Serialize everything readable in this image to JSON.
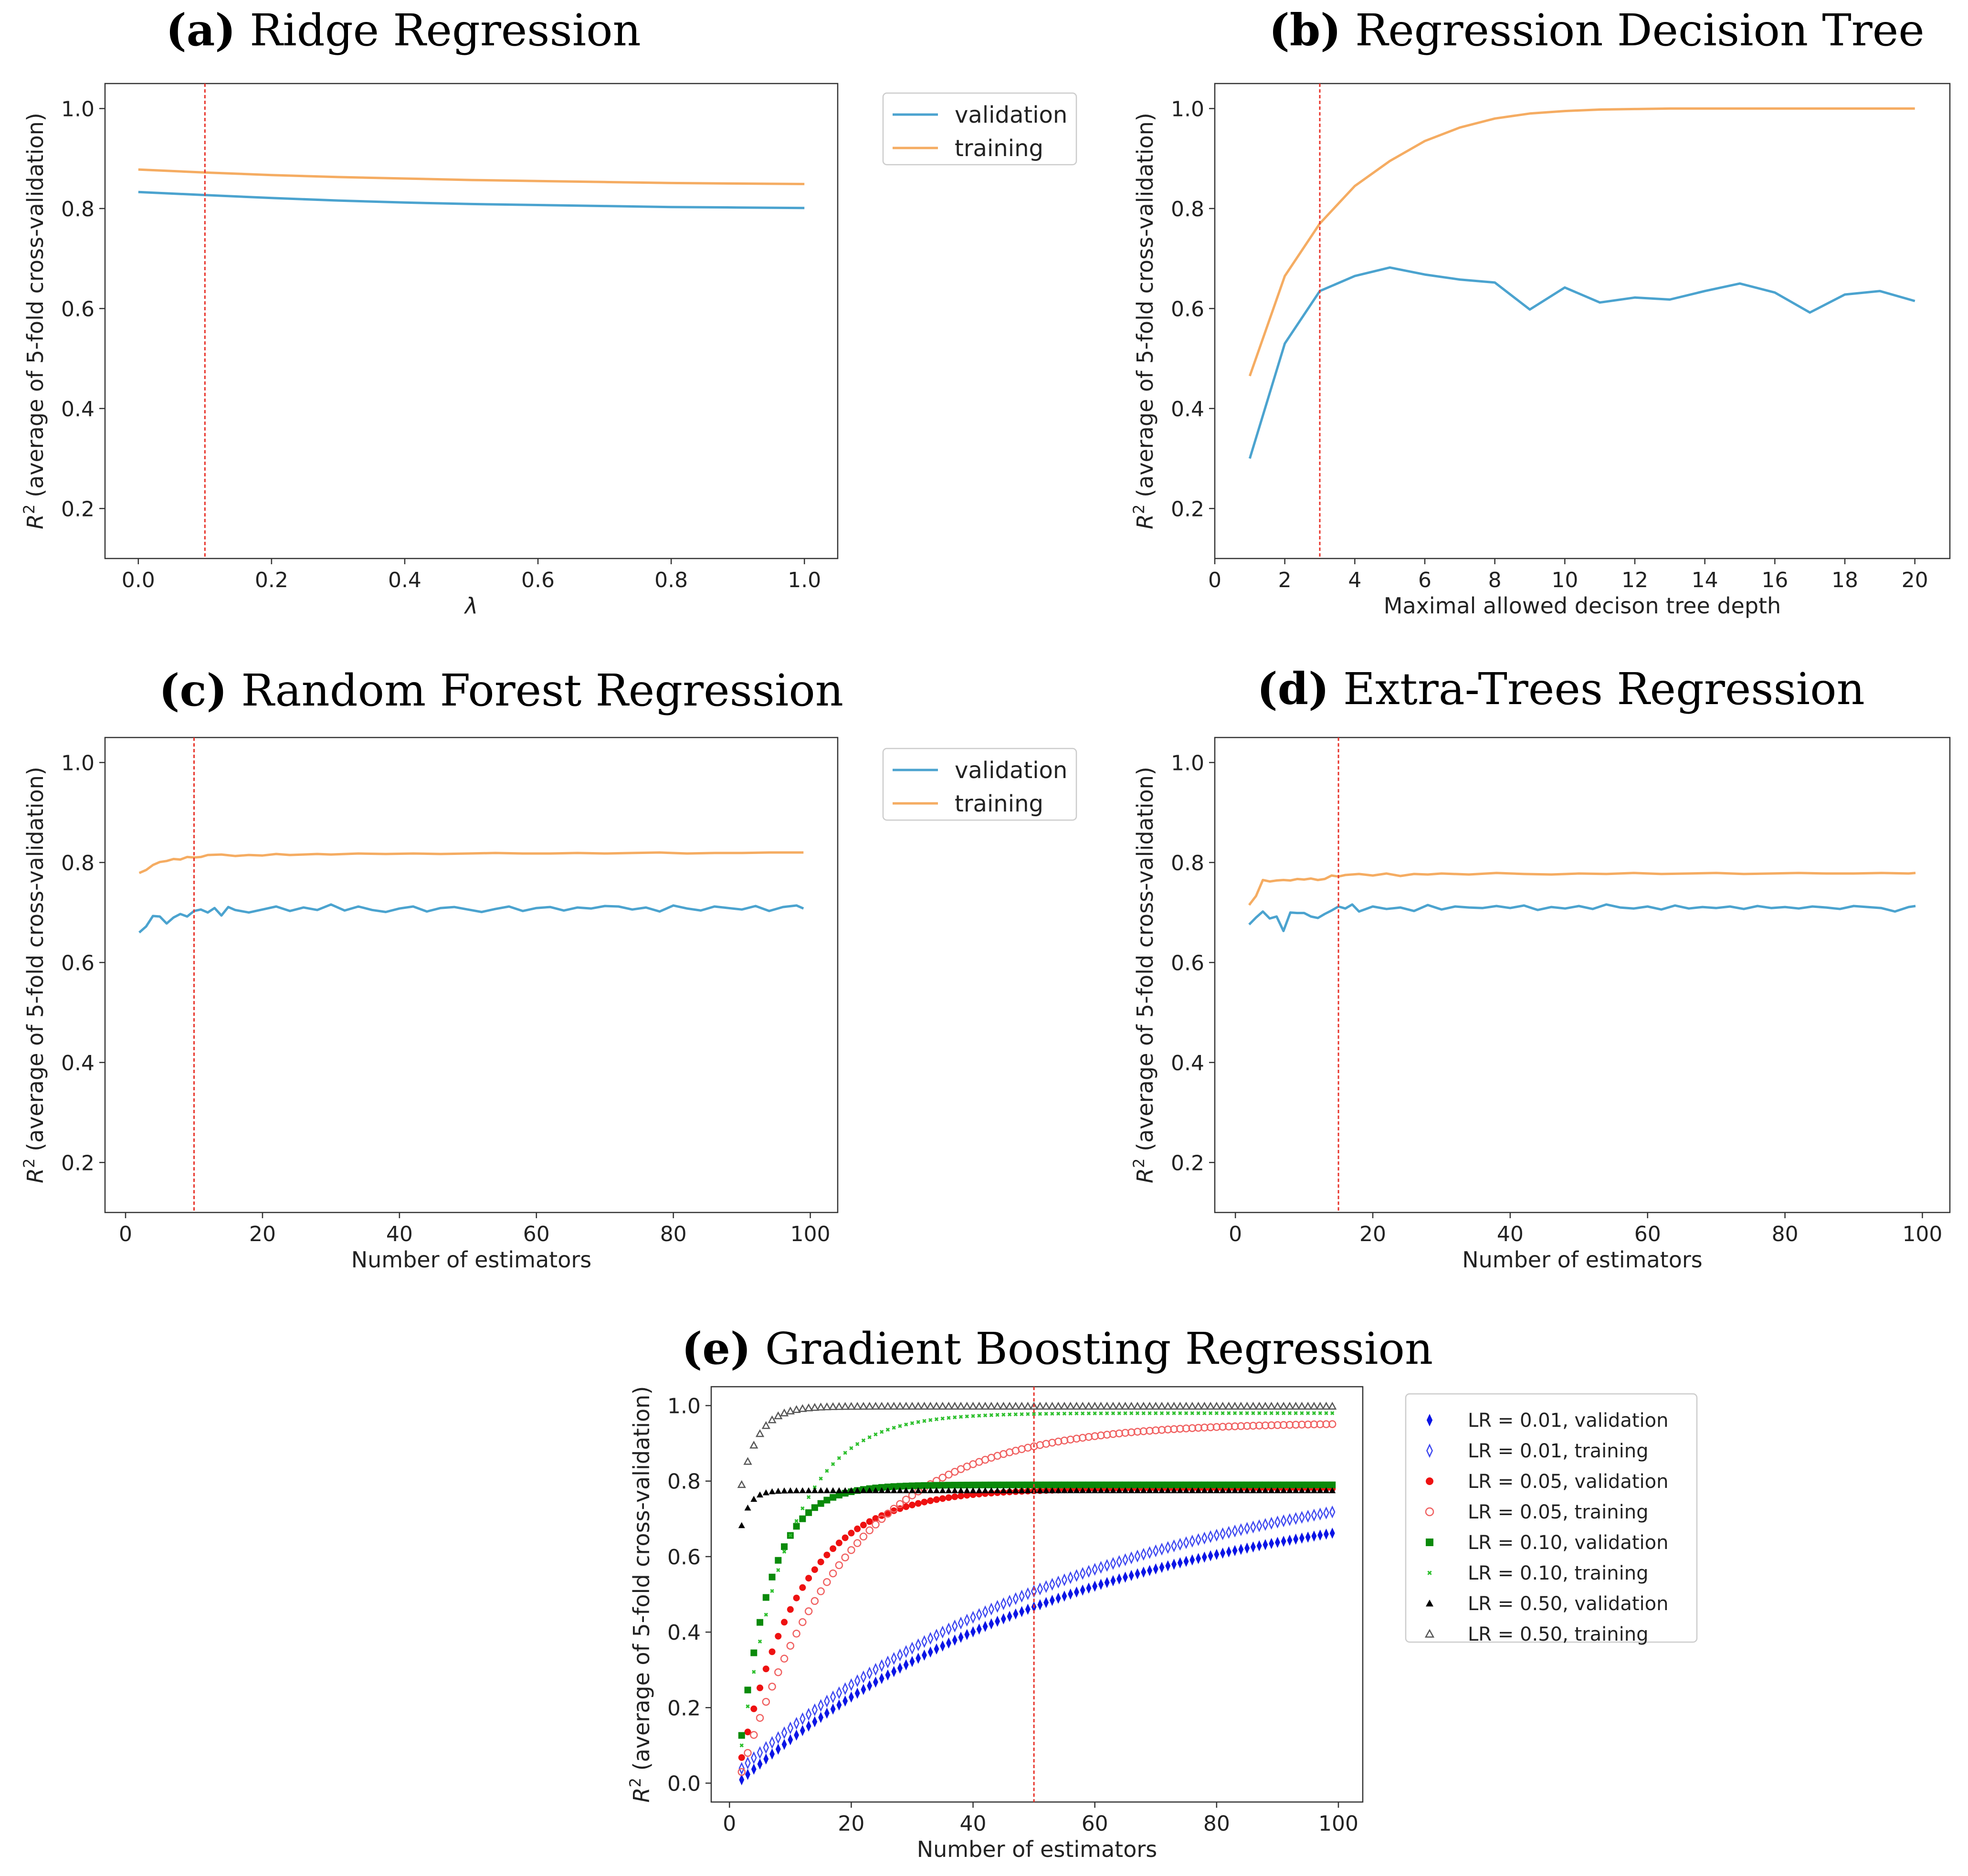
{
  "colors": {
    "validation": "#4ba3cf",
    "training": "#f5ac62",
    "optimal": "#e8332a"
  },
  "chart_data": [
    {
      "id": "a",
      "type": "line",
      "tag": "(a)",
      "title": "Ridge Regression",
      "xlabel": "λ",
      "ylabel": {
        "r": "R",
        "sup": "2",
        "rest": " (average of 5-fold cross-validation)"
      },
      "xlim": [
        -0.05,
        1.05
      ],
      "ylim": [
        0.1,
        1.05
      ],
      "xticks": [
        "0.0",
        "0.2",
        "0.4",
        "0.6",
        "0.8",
        "1.0"
      ],
      "xtick_values": [
        0,
        0.2,
        0.4,
        0.6,
        0.8,
        1.0
      ],
      "yticks": [
        "0.2",
        "0.4",
        "0.6",
        "0.8",
        "1.0"
      ],
      "ytick_values": [
        0.2,
        0.4,
        0.6,
        0.8,
        1.0
      ],
      "optimal_x": 0.1,
      "legend": {
        "position": "outside-right",
        "entries": [
          "validation",
          "training"
        ]
      },
      "series": [
        {
          "name": "validation",
          "x": [
            0,
            0.1,
            0.2,
            0.3,
            0.4,
            0.5,
            0.6,
            0.7,
            0.8,
            0.9,
            1.0
          ],
          "values": [
            0.833,
            0.827,
            0.821,
            0.816,
            0.812,
            0.809,
            0.807,
            0.805,
            0.803,
            0.802,
            0.801
          ]
        },
        {
          "name": "training",
          "x": [
            0,
            0.1,
            0.2,
            0.3,
            0.4,
            0.5,
            0.6,
            0.7,
            0.8,
            0.9,
            1.0
          ],
          "values": [
            0.878,
            0.872,
            0.867,
            0.863,
            0.86,
            0.857,
            0.855,
            0.853,
            0.851,
            0.85,
            0.849
          ]
        }
      ]
    },
    {
      "id": "b",
      "type": "line",
      "tag": "(b)",
      "title": "Regression Decision Tree",
      "xlabel": "Maximal allowed decison tree depth",
      "ylabel": {
        "r": "R",
        "sup": "2",
        "rest": " (average of 5-fold cross-validation)"
      },
      "xlim": [
        0,
        21
      ],
      "ylim": [
        0.1,
        1.05
      ],
      "xticks": [
        "0",
        "2",
        "4",
        "6",
        "8",
        "10",
        "12",
        "14",
        "16",
        "18",
        "20"
      ],
      "xtick_values": [
        0,
        2,
        4,
        6,
        8,
        10,
        12,
        14,
        16,
        18,
        20
      ],
      "yticks": [
        "0.2",
        "0.4",
        "0.6",
        "0.8",
        "1.0"
      ],
      "ytick_values": [
        0.2,
        0.4,
        0.6,
        0.8,
        1.0
      ],
      "optimal_x": 3,
      "series": [
        {
          "name": "validation",
          "x": [
            1,
            2,
            3,
            4,
            5,
            6,
            7,
            8,
            9,
            10,
            11,
            12,
            13,
            14,
            15,
            16,
            17,
            18,
            19,
            20
          ],
          "values": [
            0.3,
            0.53,
            0.635,
            0.665,
            0.682,
            0.668,
            0.658,
            0.652,
            0.598,
            0.642,
            0.612,
            0.622,
            0.618,
            0.635,
            0.65,
            0.632,
            0.592,
            0.628,
            0.635,
            0.615
          ]
        },
        {
          "name": "training",
          "x": [
            1,
            2,
            3,
            4,
            5,
            6,
            7,
            8,
            9,
            10,
            11,
            12,
            13,
            14,
            15,
            16,
            17,
            18,
            19,
            20
          ],
          "values": [
            0.465,
            0.665,
            0.77,
            0.845,
            0.895,
            0.935,
            0.962,
            0.98,
            0.99,
            0.995,
            0.998,
            0.999,
            1.0,
            1.0,
            1.0,
            1.0,
            1.0,
            1.0,
            1.0,
            1.0
          ]
        }
      ]
    },
    {
      "id": "c",
      "type": "line",
      "tag": "(c)",
      "title": "Random Forest Regression",
      "xlabel": "Number of estimators",
      "ylabel": {
        "r": "R",
        "sup": "2",
        "rest": " (average of 5-fold cross-validation)"
      },
      "xlim": [
        -3,
        104
      ],
      "ylim": [
        0.1,
        1.05
      ],
      "xticks": [
        "0",
        "20",
        "40",
        "60",
        "80",
        "100"
      ],
      "xtick_values": [
        0,
        20,
        40,
        60,
        80,
        100
      ],
      "yticks": [
        "0.2",
        "0.4",
        "0.6",
        "0.8",
        "1.0"
      ],
      "ytick_values": [
        0.2,
        0.4,
        0.6,
        0.8,
        1.0
      ],
      "optimal_x": 10,
      "legend": {
        "position": "outside-right",
        "entries": [
          "validation",
          "training"
        ]
      },
      "series": [
        {
          "name": "validation",
          "x": [
            2,
            3,
            4,
            5,
            6,
            7,
            8,
            9,
            10,
            11,
            12,
            13,
            14,
            15,
            16,
            18,
            20,
            22,
            24,
            26,
            28,
            30,
            32,
            34,
            36,
            38,
            40,
            42,
            44,
            46,
            48,
            50,
            52,
            54,
            56,
            58,
            60,
            62,
            64,
            66,
            68,
            70,
            72,
            74,
            76,
            78,
            80,
            82,
            84,
            86,
            88,
            90,
            92,
            94,
            96,
            98,
            99
          ],
          "values": [
            0.66,
            0.672,
            0.693,
            0.692,
            0.678,
            0.69,
            0.697,
            0.692,
            0.703,
            0.706,
            0.7,
            0.709,
            0.694,
            0.711,
            0.705,
            0.7,
            0.706,
            0.712,
            0.703,
            0.71,
            0.705,
            0.716,
            0.704,
            0.712,
            0.705,
            0.701,
            0.708,
            0.712,
            0.702,
            0.709,
            0.711,
            0.706,
            0.701,
            0.707,
            0.712,
            0.703,
            0.709,
            0.711,
            0.704,
            0.71,
            0.708,
            0.713,
            0.712,
            0.706,
            0.71,
            0.702,
            0.714,
            0.708,
            0.704,
            0.712,
            0.709,
            0.706,
            0.713,
            0.703,
            0.711,
            0.714,
            0.708
          ]
        },
        {
          "name": "training",
          "x": [
            2,
            3,
            4,
            5,
            6,
            7,
            8,
            9,
            10,
            11,
            12,
            14,
            16,
            18,
            20,
            22,
            24,
            26,
            28,
            30,
            34,
            38,
            42,
            46,
            50,
            54,
            58,
            62,
            66,
            70,
            74,
            78,
            82,
            86,
            90,
            94,
            98,
            99
          ],
          "values": [
            0.779,
            0.785,
            0.795,
            0.801,
            0.803,
            0.807,
            0.806,
            0.811,
            0.81,
            0.811,
            0.815,
            0.816,
            0.813,
            0.815,
            0.814,
            0.817,
            0.815,
            0.816,
            0.817,
            0.816,
            0.818,
            0.817,
            0.818,
            0.817,
            0.818,
            0.819,
            0.818,
            0.818,
            0.819,
            0.818,
            0.819,
            0.82,
            0.818,
            0.819,
            0.819,
            0.82,
            0.82,
            0.82
          ]
        }
      ]
    },
    {
      "id": "d",
      "type": "line",
      "tag": "(d)",
      "title": "Extra-Trees Regression",
      "xlabel": "Number of estimators",
      "ylabel": {
        "r": "R",
        "sup": "2",
        "rest": " (average of 5-fold cross-validation)"
      },
      "xlim": [
        -3,
        104
      ],
      "ylim": [
        0.1,
        1.05
      ],
      "xticks": [
        "0",
        "20",
        "40",
        "60",
        "80",
        "100"
      ],
      "xtick_values": [
        0,
        20,
        40,
        60,
        80,
        100
      ],
      "yticks": [
        "0.2",
        "0.4",
        "0.6",
        "0.8",
        "1.0"
      ],
      "ytick_values": [
        0.2,
        0.4,
        0.6,
        0.8,
        1.0
      ],
      "optimal_x": 15,
      "series": [
        {
          "name": "validation",
          "x": [
            2,
            3,
            4,
            5,
            6,
            7,
            8,
            9,
            10,
            11,
            12,
            13,
            14,
            15,
            16,
            17,
            18,
            20,
            22,
            24,
            26,
            28,
            30,
            32,
            34,
            36,
            38,
            40,
            42,
            44,
            46,
            48,
            50,
            52,
            54,
            56,
            58,
            60,
            62,
            64,
            66,
            68,
            70,
            72,
            74,
            76,
            78,
            80,
            82,
            84,
            86,
            88,
            90,
            92,
            94,
            96,
            98,
            99
          ],
          "values": [
            0.676,
            0.69,
            0.702,
            0.688,
            0.692,
            0.663,
            0.7,
            0.699,
            0.699,
            0.692,
            0.689,
            0.697,
            0.704,
            0.712,
            0.708,
            0.716,
            0.702,
            0.712,
            0.707,
            0.71,
            0.703,
            0.715,
            0.706,
            0.712,
            0.71,
            0.709,
            0.713,
            0.709,
            0.714,
            0.705,
            0.711,
            0.708,
            0.713,
            0.707,
            0.716,
            0.71,
            0.708,
            0.712,
            0.706,
            0.714,
            0.708,
            0.711,
            0.709,
            0.712,
            0.707,
            0.713,
            0.709,
            0.711,
            0.708,
            0.712,
            0.71,
            0.707,
            0.713,
            0.711,
            0.709,
            0.702,
            0.711,
            0.713
          ]
        },
        {
          "name": "training",
          "x": [
            2,
            3,
            4,
            5,
            6,
            7,
            8,
            9,
            10,
            11,
            12,
            13,
            14,
            15,
            16,
            18,
            20,
            22,
            24,
            26,
            28,
            30,
            34,
            38,
            42,
            46,
            50,
            54,
            58,
            62,
            66,
            70,
            74,
            78,
            82,
            86,
            90,
            94,
            98,
            99
          ],
          "values": [
            0.715,
            0.733,
            0.765,
            0.762,
            0.764,
            0.765,
            0.764,
            0.767,
            0.766,
            0.768,
            0.765,
            0.767,
            0.774,
            0.772,
            0.775,
            0.777,
            0.774,
            0.778,
            0.773,
            0.777,
            0.776,
            0.778,
            0.776,
            0.779,
            0.777,
            0.776,
            0.778,
            0.777,
            0.779,
            0.777,
            0.778,
            0.779,
            0.777,
            0.778,
            0.779,
            0.778,
            0.778,
            0.779,
            0.778,
            0.779
          ]
        }
      ]
    },
    {
      "id": "e",
      "type": "scatter",
      "tag": "(e)",
      "title": "Gradient Boosting Regression",
      "xlabel": "Number of estimators",
      "ylabel": {
        "r": "R",
        "sup": "2",
        "rest": " (average of 5-fold cross-validation)"
      },
      "xlim": [
        -3,
        104
      ],
      "ylim": [
        -0.05,
        1.05
      ],
      "xticks": [
        "0",
        "20",
        "40",
        "60",
        "80",
        "100"
      ],
      "xtick_values": [
        0,
        20,
        40,
        60,
        80,
        100
      ],
      "yticks": [
        "0.0",
        "0.2",
        "0.4",
        "0.6",
        "0.8",
        "1.0"
      ],
      "ytick_values": [
        0,
        0.2,
        0.4,
        0.6,
        0.8,
        1.0
      ],
      "optimal_x": 50,
      "x_range": [
        2,
        99
      ],
      "legend": {
        "position": "outside-right",
        "entries": [
          "LR = 0.01, validation",
          "LR = 0.01, training",
          "LR = 0.05, validation",
          "LR = 0.05, training",
          "LR = 0.10, validation",
          "LR = 0.10, training",
          "LR = 0.50, validation",
          "LR = 0.50, training"
        ]
      },
      "series": [
        {
          "name": "LR = 0.01, validation",
          "marker": "diamond-filled",
          "color": "#0a14e6",
          "curve": {
            "start": -0.02,
            "end": 0.8,
            "rate": 0.018
          }
        },
        {
          "name": "LR = 0.01, training",
          "marker": "diamond-open",
          "color": "#3c46f0",
          "curve": {
            "start": 0.01,
            "end": 0.88,
            "rate": 0.017
          }
        },
        {
          "name": "LR = 0.05, validation",
          "marker": "circle-filled",
          "color": "#ee1111",
          "curve": {
            "start": -0.09,
            "end": 0.78,
            "rate": 0.1
          }
        },
        {
          "name": "LR = 0.05, training",
          "marker": "circle-open",
          "color": "#f06060",
          "curve": {
            "start": -0.08,
            "end": 0.955,
            "rate": 0.056
          }
        },
        {
          "name": "LR = 0.10, validation",
          "marker": "square-filled",
          "color": "#0a8a0a",
          "curve": {
            "start": -0.2,
            "end": 0.79,
            "rate": 0.2
          }
        },
        {
          "name": "LR = 0.10, training",
          "marker": "x",
          "color": "#2cbf2c",
          "curve": {
            "start": -0.15,
            "end": 0.98,
            "rate": 0.125
          }
        },
        {
          "name": "LR = 0.50, validation",
          "marker": "triangle-filled",
          "color": "#000000",
          "curve": {
            "start": 0.4,
            "end": 0.775,
            "rate": 0.7
          }
        },
        {
          "name": "LR = 0.50, training",
          "marker": "triangle-open",
          "color": "#555555",
          "curve": {
            "start": 0.58,
            "end": 0.998,
            "rate": 0.35
          }
        }
      ]
    }
  ]
}
